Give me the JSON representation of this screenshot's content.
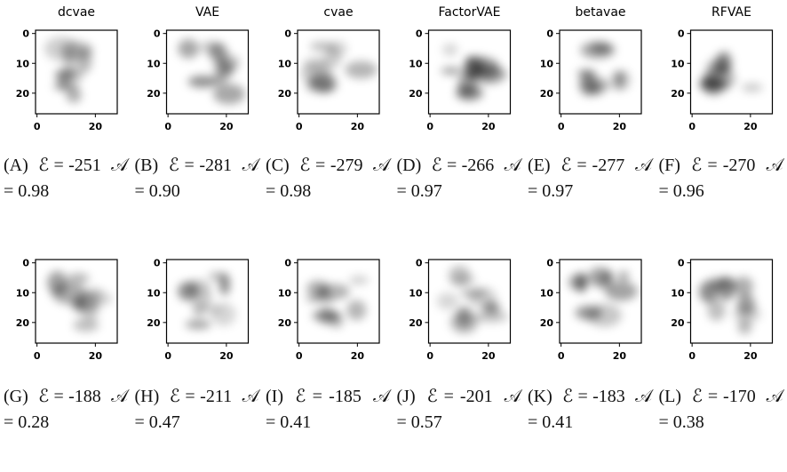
{
  "axis": {
    "yticks": [
      "0",
      "10",
      "20"
    ],
    "xticks": [
      "0",
      "20"
    ]
  },
  "panels": [
    {
      "title": "dcvae",
      "tag": "(A)",
      "energy": "ℰ = -251",
      "score": "𝒜 = 0.98"
    },
    {
      "title": "VAE",
      "tag": "(B)",
      "energy": "ℰ = -281",
      "score": "𝒜 = 0.90"
    },
    {
      "title": "cvae",
      "tag": "(C)",
      "energy": "ℰ = -279",
      "score": "𝒜 = 0.98"
    },
    {
      "title": "FactorVAE",
      "tag": "(D)",
      "energy": "ℰ = -266",
      "score": "𝒜 = 0.97"
    },
    {
      "title": "betavae",
      "tag": "(E)",
      "energy": "ℰ = -277",
      "score": "𝒜 = 0.97"
    },
    {
      "title": "RFVAE",
      "tag": "(F)",
      "energy": "ℰ = -270",
      "score": "𝒜 = 0.96"
    },
    {
      "tag": "(G)",
      "energy": "ℰ = -188",
      "score": "𝒜 = 0.28"
    },
    {
      "tag": "(H)",
      "energy": "ℰ = -211",
      "score": "𝒜 = 0.47"
    },
    {
      "tag": "(I)",
      "energy": "ℰ = -185",
      "score": "𝒜 = 0.41"
    },
    {
      "tag": "(J)",
      "energy": "ℰ = -201",
      "score": "𝒜 = 0.57"
    },
    {
      "tag": "(K)",
      "energy": "ℰ = -183",
      "score": "𝒜 = 0.41"
    },
    {
      "tag": "(L)",
      "energy": "ℰ = -170",
      "score": "𝒜 = 0.38"
    }
  ]
}
